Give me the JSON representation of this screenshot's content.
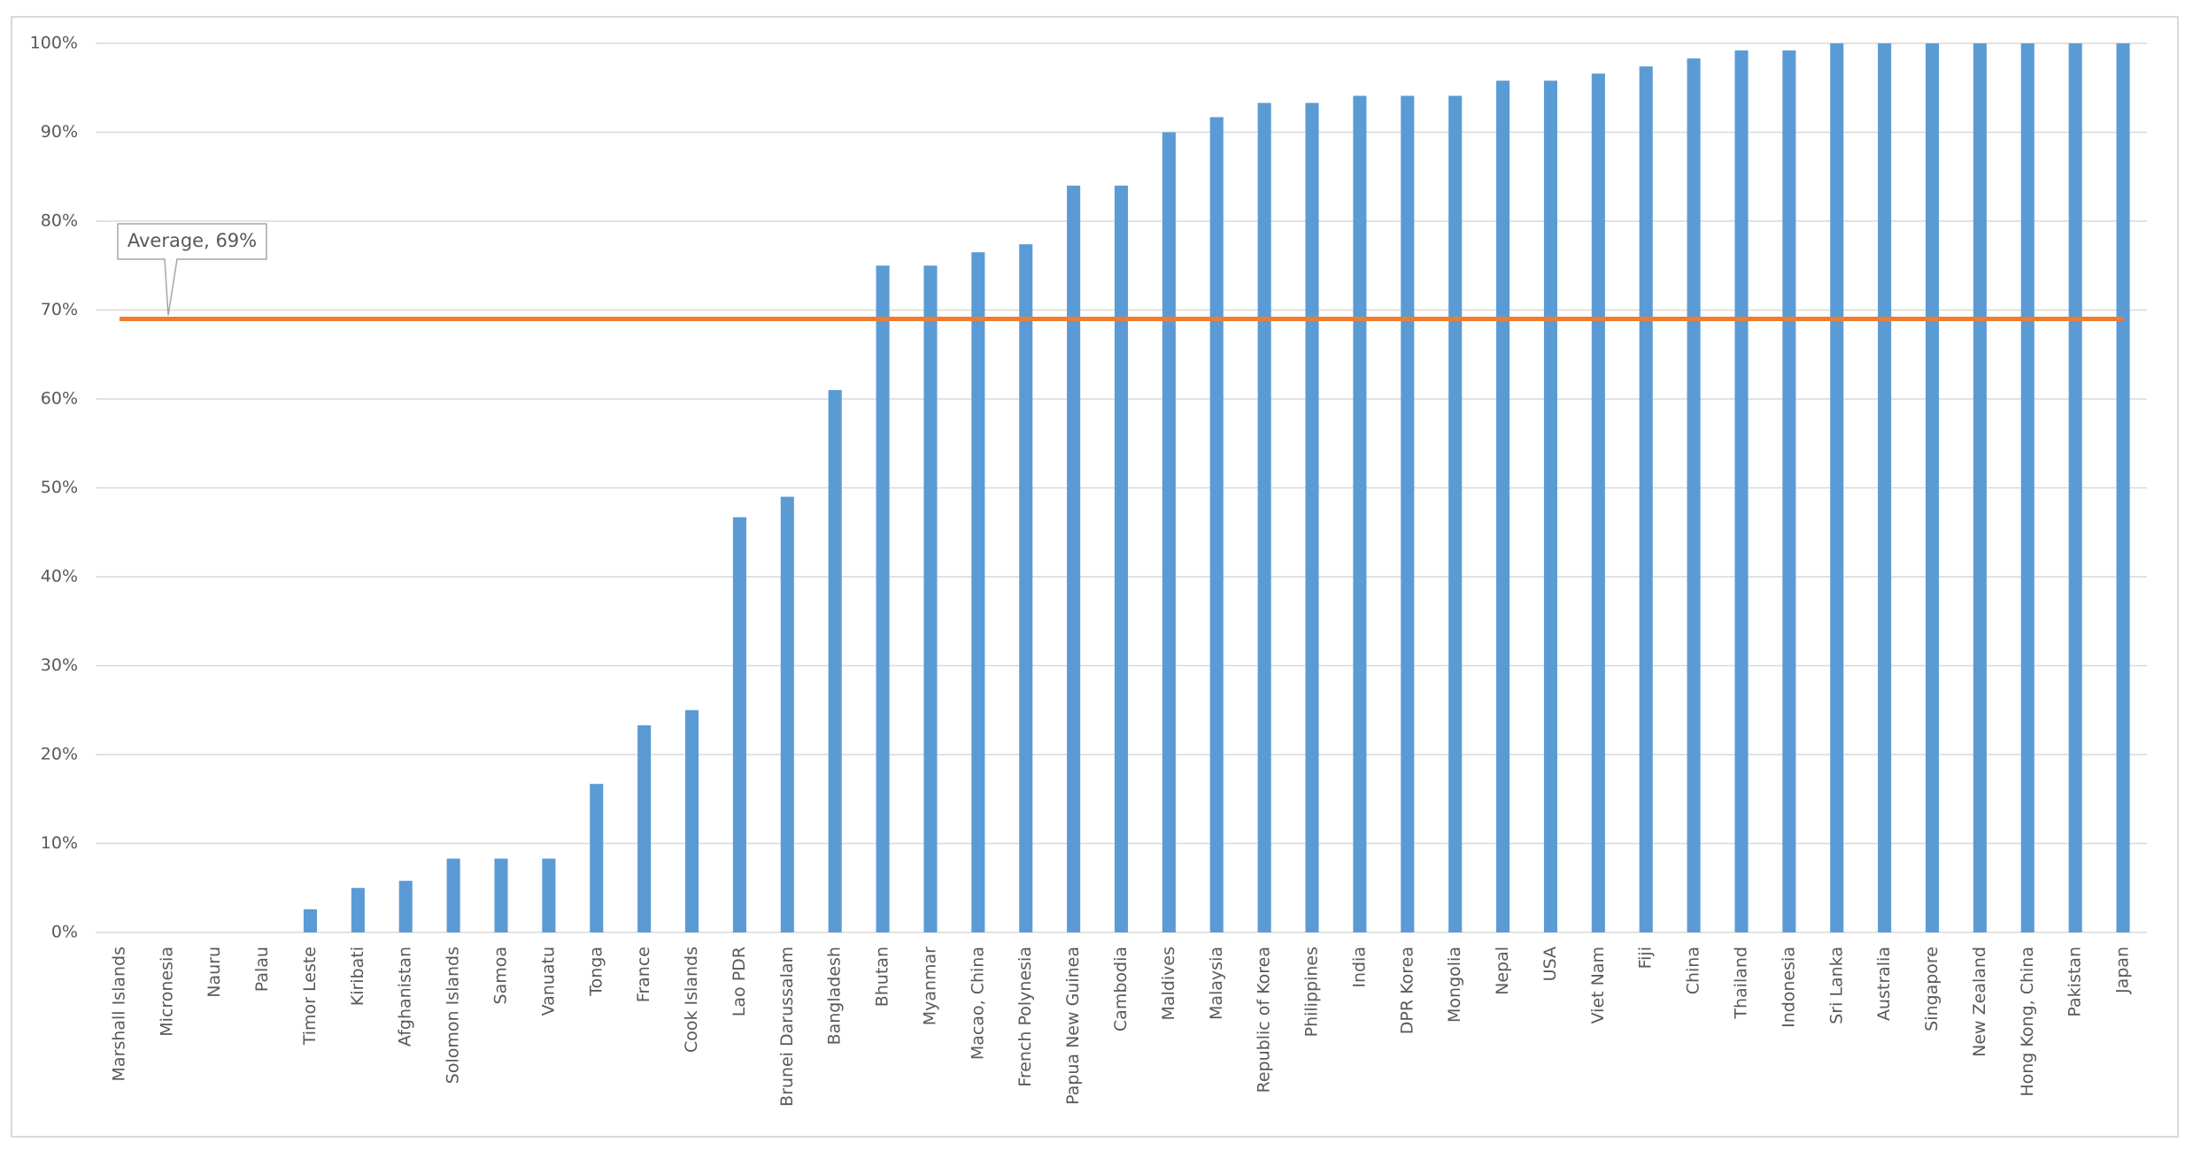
{
  "chart_data": {
    "type": "bar",
    "categories": [
      "Marshall Islands",
      "Micronesia",
      "Nauru",
      "Palau",
      "Timor Leste",
      "Kiribati",
      "Afghanistan",
      "Solomon Islands",
      "Samoa",
      "Vanuatu",
      "Tonga",
      "France",
      "Cook Islands",
      "Lao PDR",
      "Brunei Darussalam",
      "Bangladesh",
      "Bhutan",
      "Myanmar",
      "Macao, China",
      "French Polynesia",
      "Papua New Guinea",
      "Cambodia",
      "Maldives",
      "Malaysia",
      "Republic of Korea",
      "Philippines",
      "India",
      "DPR Korea",
      "Mongolia",
      "Nepal",
      "USA",
      "Viet Nam",
      "Fiji",
      "China",
      "Thailand",
      "Indonesia",
      "Sri Lanka",
      "Australia",
      "Singapore",
      "New Zealand",
      "Hong Kong, China",
      "Pakistan",
      "Japan"
    ],
    "values": [
      0,
      0,
      0,
      0,
      2.6,
      5,
      5.8,
      8.3,
      8.3,
      8.3,
      16.7,
      23.3,
      25,
      46.7,
      49,
      61,
      75,
      75,
      76.5,
      77.4,
      84,
      84,
      90,
      91.7,
      93.3,
      93.3,
      94.1,
      94.1,
      94.1,
      95.8,
      95.8,
      96.6,
      97.4,
      98.3,
      99.2,
      99.2,
      100,
      100,
      100,
      100,
      100,
      100,
      100
    ],
    "color": "#5b9bd5",
    "average": {
      "label": "Average, 69%",
      "value": 69,
      "color": "#ed7d31"
    },
    "ylim": [
      0,
      100
    ],
    "yticks": [
      {
        "value": 0,
        "label": "0%"
      },
      {
        "value": 10,
        "label": "10%"
      },
      {
        "value": 20,
        "label": "20%"
      },
      {
        "value": 30,
        "label": "30%"
      },
      {
        "value": 40,
        "label": "40%"
      },
      {
        "value": 50,
        "label": "50%"
      },
      {
        "value": 60,
        "label": "60%"
      },
      {
        "value": 70,
        "label": "70%"
      },
      {
        "value": 80,
        "label": "80%"
      },
      {
        "value": 90,
        "label": "90%"
      },
      {
        "value": 100,
        "label": "100%"
      }
    ],
    "grid": true
  }
}
